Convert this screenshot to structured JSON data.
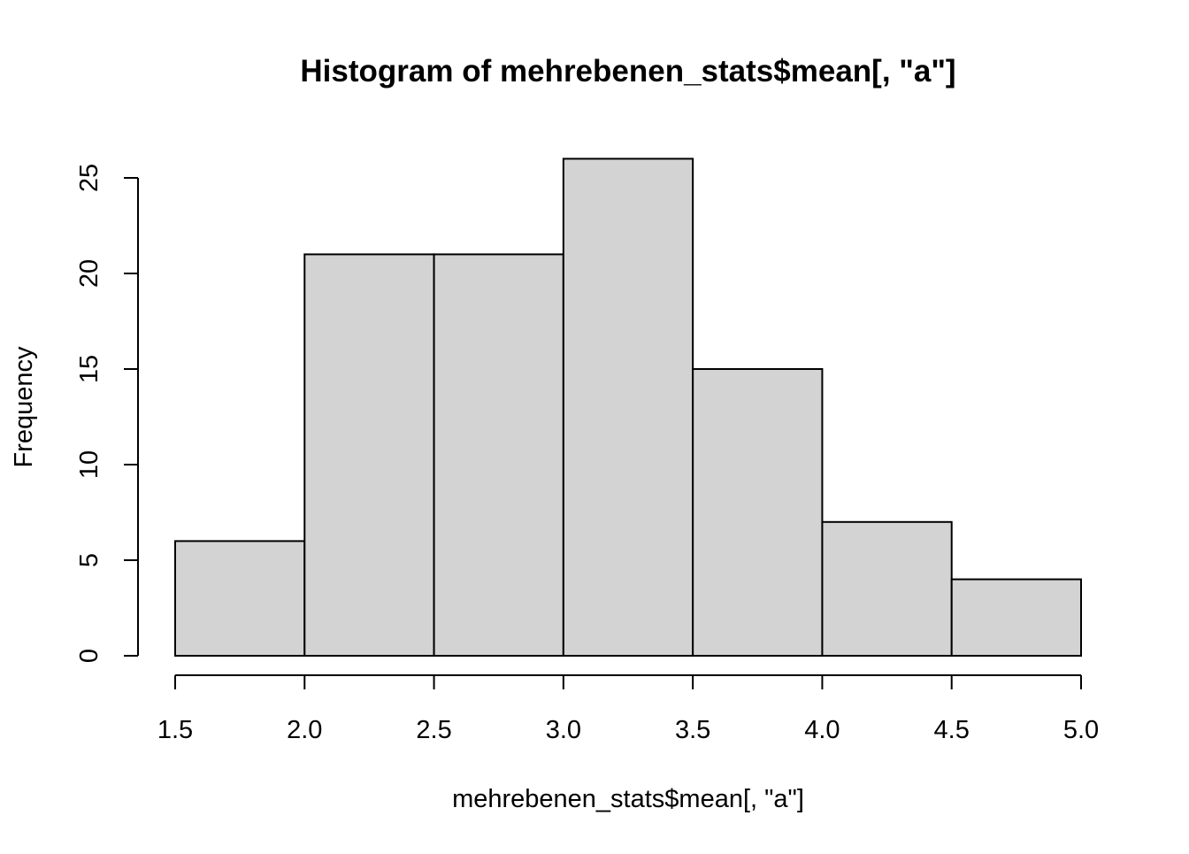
{
  "chart_data": {
    "type": "bar",
    "title": "Histogram of mehrebenen_stats$mean[, \"a\"]",
    "xlabel": "mehrebenen_stats$mean[, \"a\"]",
    "ylabel": "Frequency",
    "bins": [
      {
        "from": 1.5,
        "to": 2.0,
        "count": 6
      },
      {
        "from": 2.0,
        "to": 2.5,
        "count": 21
      },
      {
        "from": 2.5,
        "to": 3.0,
        "count": 21
      },
      {
        "from": 3.0,
        "to": 3.5,
        "count": 26
      },
      {
        "from": 3.5,
        "to": 4.0,
        "count": 15
      },
      {
        "from": 4.0,
        "to": 4.5,
        "count": 7
      },
      {
        "from": 4.5,
        "to": 5.0,
        "count": 4
      }
    ],
    "xlim": [
      1.5,
      5.0
    ],
    "ylim": [
      0,
      25
    ],
    "x_ticks": [
      "1.5",
      "2.0",
      "2.5",
      "3.0",
      "3.5",
      "4.0",
      "4.5",
      "5.0"
    ],
    "y_ticks": [
      "0",
      "5",
      "10",
      "15",
      "20",
      "25"
    ],
    "grid": false,
    "bar_color": "#d3d3d3",
    "border_color": "#000000"
  }
}
